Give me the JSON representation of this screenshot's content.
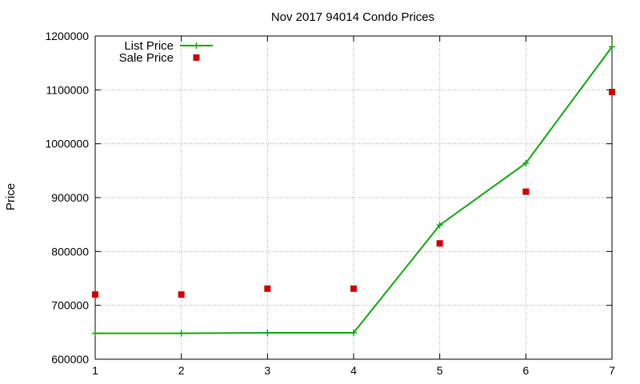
{
  "chart_data": {
    "type": "line",
    "title": "Nov 2017 94014 Condo Prices",
    "xlabel": "",
    "ylabel": "Price",
    "x": [
      1,
      2,
      3,
      4,
      5,
      6,
      7
    ],
    "xlim": [
      1,
      7
    ],
    "ylim": [
      600000,
      1200000
    ],
    "xticks": [
      "1",
      "2",
      "3",
      "4",
      "5",
      "6",
      "7"
    ],
    "yticks": [
      "600000",
      "700000",
      "800000",
      "900000",
      "1000000",
      "1100000",
      "1200000"
    ],
    "grid": true,
    "legend_position": "top-left",
    "series": [
      {
        "name": "List Price",
        "style": "line-with-plus-markers",
        "color": "#11a511",
        "values": [
          648000,
          648000,
          649000,
          649000,
          849000,
          964000,
          1180000
        ]
      },
      {
        "name": "Sale Price",
        "style": "square-markers",
        "color": "#cc0000",
        "values": [
          720000,
          720000,
          731000,
          731000,
          815000,
          911000,
          1096000
        ]
      }
    ]
  }
}
